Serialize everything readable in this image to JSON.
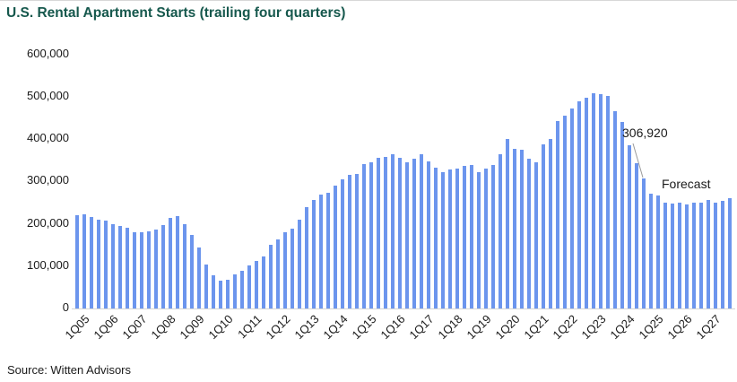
{
  "title": "U.S. Rental Apartment Starts (trailing four quarters)",
  "source": "Source: Witten Advisors",
  "colors": {
    "bar": "#6c95ed",
    "title": "#16584d",
    "axis_line": "#d6d6d6",
    "leader_line": "#9a9a9a",
    "text": "#1a1a1a"
  },
  "chart_data": {
    "type": "bar",
    "title": "U.S. Rental Apartment Starts (trailing four quarters)",
    "xlabel": "",
    "ylabel": "",
    "ylim": [
      0,
      600000
    ],
    "ytick_interval": 100000,
    "ytick_labels": [
      "0",
      "100,000",
      "200,000",
      "300,000",
      "400,000",
      "500,000",
      "600,000"
    ],
    "grid": false,
    "legend": false,
    "x_tick_every": 4,
    "x": [
      "1Q05",
      "2Q05",
      "3Q05",
      "4Q05",
      "1Q06",
      "2Q06",
      "3Q06",
      "4Q06",
      "1Q07",
      "2Q07",
      "3Q07",
      "4Q07",
      "1Q08",
      "2Q08",
      "3Q08",
      "4Q08",
      "1Q09",
      "2Q09",
      "3Q09",
      "4Q09",
      "1Q10",
      "2Q10",
      "3Q10",
      "4Q10",
      "1Q11",
      "2Q11",
      "3Q11",
      "4Q11",
      "1Q12",
      "2Q12",
      "3Q12",
      "4Q12",
      "1Q13",
      "2Q13",
      "3Q13",
      "4Q13",
      "1Q14",
      "2Q14",
      "3Q14",
      "4Q14",
      "1Q15",
      "2Q15",
      "3Q15",
      "4Q15",
      "1Q16",
      "2Q16",
      "3Q16",
      "4Q16",
      "1Q17",
      "2Q17",
      "3Q17",
      "4Q17",
      "1Q18",
      "2Q18",
      "3Q18",
      "4Q18",
      "1Q19",
      "2Q19",
      "3Q19",
      "4Q19",
      "1Q20",
      "2Q20",
      "3Q20",
      "4Q20",
      "1Q21",
      "2Q21",
      "3Q21",
      "4Q21",
      "1Q22",
      "2Q22",
      "3Q22",
      "4Q22",
      "1Q23",
      "2Q23",
      "3Q23",
      "4Q23",
      "1Q24",
      "2Q24",
      "3Q24",
      "4Q24",
      "1Q25",
      "2Q25",
      "3Q25",
      "4Q25",
      "1Q26",
      "2Q26",
      "3Q26",
      "4Q26",
      "1Q27",
      "2Q27",
      "3Q27",
      "4Q27"
    ],
    "values": [
      221000,
      223000,
      215000,
      210000,
      207000,
      200000,
      194000,
      191000,
      180000,
      179000,
      181000,
      187000,
      196000,
      213000,
      217000,
      198000,
      174000,
      143000,
      104000,
      78000,
      66000,
      68000,
      80000,
      88000,
      101000,
      112000,
      122000,
      150000,
      164000,
      179000,
      188000,
      210000,
      240000,
      256000,
      269000,
      272000,
      289000,
      304000,
      316000,
      318000,
      341000,
      344000,
      355000,
      358000,
      363000,
      355000,
      344000,
      354000,
      363000,
      348000,
      332000,
      322000,
      328000,
      330000,
      337000,
      339000,
      322000,
      330000,
      339000,
      363000,
      400000,
      377000,
      375000,
      354000,
      344000,
      388000,
      399000,
      442000,
      456000,
      471000,
      489000,
      498000,
      508000,
      506000,
      501000,
      466000,
      440000,
      385000,
      342000,
      306920,
      270000,
      266000,
      250000,
      247000,
      249000,
      246000,
      249000,
      250000,
      256000,
      250000,
      253000,
      260000
    ],
    "annotation": {
      "label": "306,920",
      "value": 306920,
      "target_x": "4Q24"
    },
    "forecast_label": "Forecast"
  }
}
